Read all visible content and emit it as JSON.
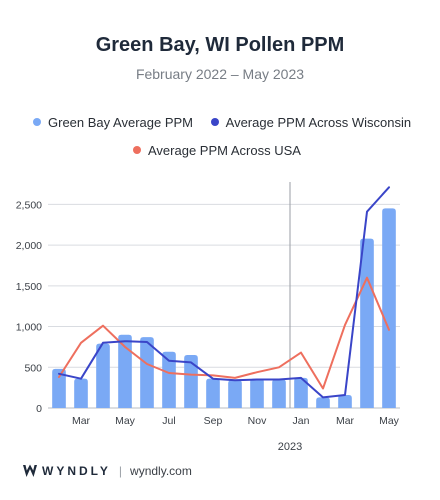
{
  "title": "Green Bay, WI Pollen PPM",
  "subtitle": "February 2022 – May 2023",
  "footer": {
    "brand": "WYNDLY",
    "site": "wyndly.com"
  },
  "colors": {
    "bars": "#7aa9f5",
    "state_line": "#3a45c8",
    "usa_line": "#ee6f5e",
    "grid": "#d9dce1",
    "axis_text": "#3a3f46"
  },
  "chart_data": {
    "type": "bar",
    "categories": [
      "Feb 2022",
      "Mar 2022",
      "Apr 2022",
      "May 2022",
      "Jun 2022",
      "Jul 2022",
      "Aug 2022",
      "Sep 2022",
      "Oct 2022",
      "Nov 2022",
      "Dec 2022",
      "Jan 2023",
      "Feb 2023",
      "Mar 2023",
      "Apr 2023",
      "May 2023"
    ],
    "x_tick_labels": [
      "",
      "Mar",
      "",
      "May",
      "",
      "Jul",
      "",
      "Sep",
      "",
      "Nov",
      "",
      "Jan",
      "",
      "Mar",
      "",
      "May"
    ],
    "year_label": "2023",
    "year_divider_before": "Jan 2023",
    "series": [
      {
        "name": "Green Bay Average PPM",
        "kind": "bar",
        "values": [
          480,
          360,
          790,
          900,
          870,
          690,
          650,
          360,
          340,
          360,
          350,
          370,
          130,
          160,
          2080,
          2450
        ]
      },
      {
        "name": "Average PPM Across Wisconsin",
        "kind": "line",
        "values": [
          420,
          360,
          800,
          820,
          810,
          580,
          560,
          360,
          340,
          350,
          350,
          370,
          130,
          160,
          2410,
          2710
        ]
      },
      {
        "name": "Average PPM Across USA",
        "kind": "line",
        "values": [
          380,
          800,
          1010,
          750,
          540,
          430,
          410,
          400,
          370,
          440,
          500,
          680,
          240,
          1020,
          1600,
          960
        ]
      }
    ],
    "ylim": [
      0,
      2750
    ],
    "y_ticks": [
      0,
      500,
      1000,
      1500,
      2000,
      2500
    ],
    "y_tick_labels": [
      "0",
      "500",
      "1,000",
      "1,500",
      "2,000",
      "2,500"
    ],
    "grid": true,
    "legend_position": "top"
  }
}
